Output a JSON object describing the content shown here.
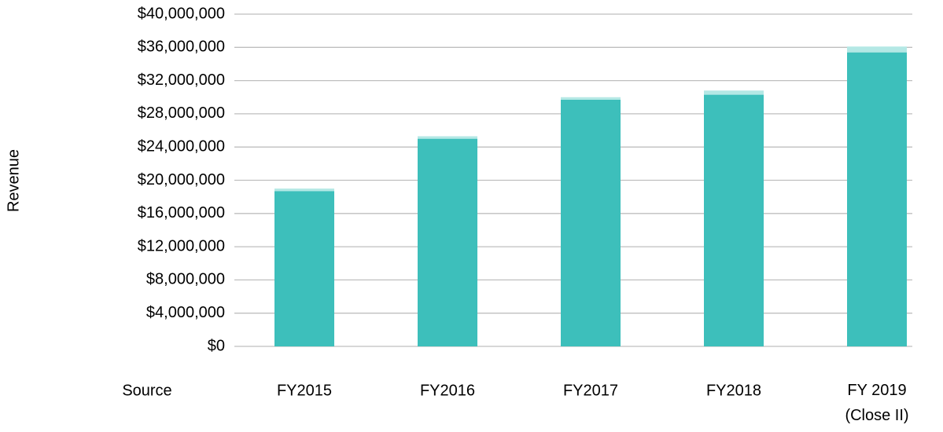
{
  "chart_data": {
    "type": "stacked_bar",
    "y_label": "Revenue",
    "x_label": "Source",
    "categories": [
      "FY2015",
      "FY2016",
      "FY2017",
      "FY2018",
      "FY 2019\n(Close II)"
    ],
    "series": [
      {
        "color": "#3dbfbb",
        "values": [
          18700000,
          25000000,
          29700000,
          30300000,
          35400000
        ]
      },
      {
        "color": "#b4e8e5",
        "values": [
          300000,
          300000,
          300000,
          500000,
          700000
        ]
      }
    ],
    "ylim": [
      0,
      40000000
    ],
    "yticks": [
      {
        "value": 0,
        "label": "$0"
      },
      {
        "value": 4000000,
        "label": "$4,000,000"
      },
      {
        "value": 8000000,
        "label": "$8,000,000"
      },
      {
        "value": 12000000,
        "label": "$12,000,000"
      },
      {
        "value": 16000000,
        "label": "$16,000,000"
      },
      {
        "value": 20000000,
        "label": "$20,000,000"
      },
      {
        "value": 24000000,
        "label": "$24,000,000"
      },
      {
        "value": 28000000,
        "label": "$28,000,000"
      },
      {
        "value": 32000000,
        "label": "$32,000,000"
      },
      {
        "value": 36000000,
        "label": "$36,000,000"
      },
      {
        "value": 40000000,
        "label": "$40,000,000"
      }
    ],
    "grid": true
  }
}
